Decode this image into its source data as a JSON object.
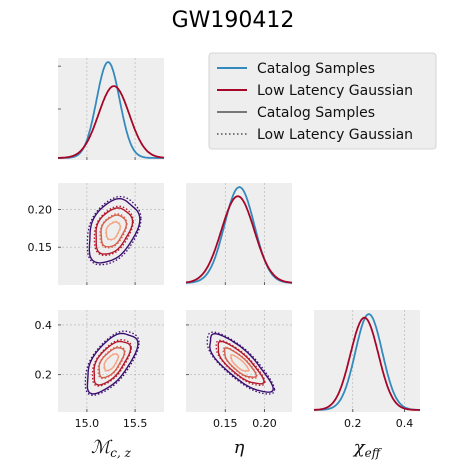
{
  "title": "GW190412",
  "colors": {
    "catalog": "#348ABD",
    "lowlat": "#A60628",
    "panel_bg": "#EEEEEE",
    "grid": "#B2B2B2",
    "contour_levels": [
      "#F4A582",
      "#D6604D",
      "#B2182B",
      "#3B0F70"
    ]
  },
  "legend": {
    "entries": [
      {
        "label": "Catalog Samples",
        "style": "solid",
        "color": "#348ABD"
      },
      {
        "label": "Low Latency Gaussian",
        "style": "solid",
        "color": "#A60628"
      },
      {
        "label": "Catalog Samples",
        "style": "solid",
        "color": "#777777"
      },
      {
        "label": "Low Latency Gaussian",
        "style": "dotted",
        "color": "#777777"
      }
    ],
    "placement": "upper-right"
  },
  "chart_data": {
    "type": "corner",
    "parameters": [
      {
        "key": "mcz",
        "label_main": "ℳ",
        "label_sub": "c, z",
        "range": [
          14.7,
          15.8
        ],
        "ticks": [
          15.0,
          15.5
        ],
        "ticklabels": [
          "15.0",
          "15.5"
        ]
      },
      {
        "key": "eta",
        "label_main": "η",
        "label_sub": "",
        "range": [
          0.1,
          0.235
        ],
        "ticks": [
          0.15,
          0.2
        ],
        "ticklabels": [
          "0.15",
          "0.20"
        ]
      },
      {
        "key": "chi",
        "label_main": "χ",
        "label_sub": "eff",
        "range": [
          0.05,
          0.46
        ],
        "ticks": [
          0.2,
          0.4
        ],
        "ticklabels": [
          "0.2",
          "0.4"
        ]
      }
    ],
    "row_ticks": {
      "eta": {
        "ticks": [
          0.15,
          0.2
        ],
        "ticklabels": [
          "0.15",
          "0.20"
        ]
      },
      "chi": {
        "ticks": [
          0.2,
          0.4
        ],
        "ticklabels": [
          "0.2",
          "0.4"
        ]
      }
    },
    "marginals": {
      "mcz": {
        "catalog": {
          "mean": 15.22,
          "sd": 0.12
        },
        "lowlat": {
          "mean": 15.28,
          "sd": 0.16
        }
      },
      "eta": {
        "catalog": {
          "mean": 0.168,
          "sd": 0.019
        },
        "lowlat": {
          "mean": 0.166,
          "sd": 0.021
        }
      },
      "chi": {
        "catalog": {
          "mean": 0.262,
          "sd": 0.052
        },
        "lowlat": {
          "mean": 0.245,
          "sd": 0.054
        }
      }
    },
    "contours": {
      "mcz_eta": {
        "center": [
          15.27,
          0.172
        ],
        "sd": [
          0.13,
          0.021
        ],
        "corr": 0.35
      },
      "mcz_chi": {
        "center": [
          15.25,
          0.25
        ],
        "sd": [
          0.13,
          0.06
        ],
        "corr": 0.6
      },
      "eta_chi": {
        "center": [
          0.168,
          0.245
        ],
        "sd": [
          0.02,
          0.058
        ],
        "corr": -0.8
      }
    }
  }
}
